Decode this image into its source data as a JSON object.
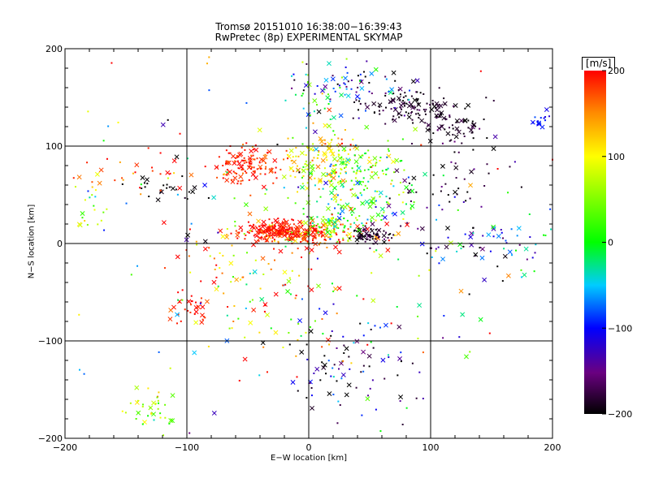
{
  "chart_data": {
    "type": "scatter",
    "title": "Tromsø 20151010 16:38:00−16:39:43",
    "subtitle": "RwPretec (8p) EXPERIMENTAL SKYMAP",
    "xlabel": "E−W location [km]",
    "ylabel": "N−S location [km]",
    "xlim": [
      -200,
      200
    ],
    "ylim": [
      -200,
      200
    ],
    "xticks": [
      -200,
      -100,
      0,
      100,
      200
    ],
    "yticks": [
      -200,
      -100,
      0,
      100,
      200
    ],
    "grid": true,
    "colorbar": {
      "label": "[m/s]",
      "range": [
        -200,
        200
      ],
      "ticks": [
        200,
        100,
        0,
        -100,
        -200
      ],
      "colormap": "rainbow (black → purple → blue → cyan → green → yellow → red)"
    },
    "markers": [
      "x",
      "."
    ],
    "clusters": [
      {
        "x": 0,
        "y": 10,
        "sx": 28,
        "sy": 7,
        "n": 220,
        "v": 170,
        "vs": 60
      },
      {
        "x": -28,
        "y": 12,
        "sx": 14,
        "sy": 5,
        "n": 150,
        "v": 195,
        "vs": 10
      },
      {
        "x": 50,
        "y": 8,
        "sx": 8,
        "sy": 5,
        "n": 70,
        "v": -185,
        "vs": 15
      },
      {
        "x": 20,
        "y": 20,
        "sx": 10,
        "sy": 6,
        "n": 60,
        "v": 30,
        "vs": 50
      },
      {
        "x": -50,
        "y": 80,
        "sx": 12,
        "sy": 10,
        "n": 120,
        "v": 190,
        "vs": 15
      },
      {
        "x": 10,
        "y": 85,
        "sx": 18,
        "sy": 12,
        "n": 130,
        "v": 110,
        "vs": 40
      },
      {
        "x": 40,
        "y": 75,
        "sx": 22,
        "sy": 12,
        "n": 90,
        "v": 20,
        "vs": 50
      },
      {
        "x": 40,
        "y": 45,
        "sx": 25,
        "sy": 12,
        "n": 90,
        "v": 20,
        "vs": 70
      },
      {
        "x": 85,
        "y": 140,
        "sx": 20,
        "sy": 8,
        "n": 110,
        "v": -190,
        "vs": 15
      },
      {
        "x": 120,
        "y": 120,
        "sx": 15,
        "sy": 10,
        "n": 60,
        "v": -190,
        "vs": 15
      },
      {
        "x": 40,
        "y": 160,
        "sx": 20,
        "sy": 12,
        "n": 60,
        "v": -110,
        "vs": 60
      },
      {
        "x": 10,
        "y": 150,
        "sx": 15,
        "sy": 20,
        "n": 40,
        "v": 0,
        "vs": 70
      },
      {
        "x": 120,
        "y": 60,
        "sx": 25,
        "sy": 20,
        "n": 40,
        "v": -180,
        "vs": 30
      },
      {
        "x": 140,
        "y": 0,
        "sx": 25,
        "sy": 15,
        "n": 50,
        "v": -150,
        "vs": 60
      },
      {
        "x": 185,
        "y": 0,
        "sx": 12,
        "sy": 20,
        "n": 20,
        "v": -40,
        "vs": 40
      },
      {
        "x": 190,
        "y": 125,
        "sx": 5,
        "sy": 5,
        "n": 15,
        "v": -100,
        "vs": 10
      },
      {
        "x": -115,
        "y": 55,
        "sx": 15,
        "sy": 8,
        "n": 25,
        "v": -200,
        "vs": 5
      },
      {
        "x": -95,
        "y": -65,
        "sx": 10,
        "sy": 10,
        "n": 30,
        "v": 190,
        "vs": 15
      },
      {
        "x": -130,
        "y": -170,
        "sx": 12,
        "sy": 15,
        "n": 40,
        "v": 60,
        "vs": 40
      },
      {
        "x": 40,
        "y": -130,
        "sx": 30,
        "sy": 25,
        "n": 80,
        "v": -150,
        "vs": 70
      },
      {
        "x": -10,
        "y": -60,
        "sx": 40,
        "sy": 30,
        "n": 60,
        "v": 150,
        "vs": 80
      },
      {
        "x": -70,
        "y": -30,
        "sx": 25,
        "sy": 20,
        "n": 40,
        "v": 150,
        "vs": 70
      },
      {
        "x": -140,
        "y": 80,
        "sx": 25,
        "sy": 20,
        "n": 30,
        "v": 180,
        "vs": 30
      },
      {
        "x": -180,
        "y": 40,
        "sx": 10,
        "sy": 20,
        "n": 20,
        "v": 50,
        "vs": 60
      },
      {
        "x": 0,
        "y": 0,
        "sx": 120,
        "sy": 100,
        "n": 200,
        "v": 0,
        "vs": 130
      }
    ]
  }
}
